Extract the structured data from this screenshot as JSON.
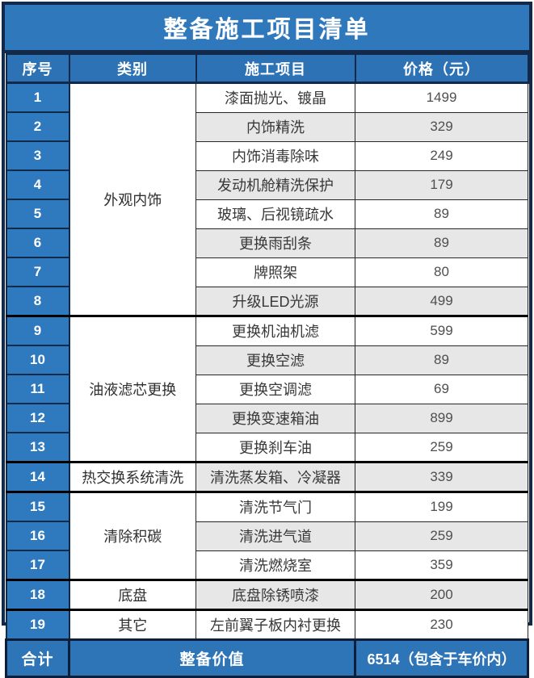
{
  "title": "整备施工项目清单",
  "columns": [
    "序号",
    "类别",
    "施工项目",
    "价格（元）"
  ],
  "rows": [
    {
      "no": "1",
      "category": {
        "label": "外观内饰",
        "span": 8
      },
      "project": "漆面抛光、镀晶",
      "price": "1499"
    },
    {
      "no": "2",
      "project": "内饰精洗",
      "price": "329"
    },
    {
      "no": "3",
      "project": "内饰消毒除味",
      "price": "249"
    },
    {
      "no": "4",
      "project": "发动机舱精洗保护",
      "price": "179"
    },
    {
      "no": "5",
      "project": "玻璃、后视镜疏水",
      "price": "89"
    },
    {
      "no": "6",
      "project": "更换雨刮条",
      "price": "89"
    },
    {
      "no": "7",
      "project": "牌照架",
      "price": "80"
    },
    {
      "no": "8",
      "project": "升级LED光源",
      "price": "499"
    },
    {
      "no": "9",
      "category": {
        "label": "油液滤芯更换",
        "span": 5
      },
      "project": "更换机油机滤",
      "price": "599"
    },
    {
      "no": "10",
      "project": "更换空滤",
      "price": "89"
    },
    {
      "no": "11",
      "project": "更换空调滤",
      "price": "69"
    },
    {
      "no": "12",
      "project": "更换变速箱油",
      "price": "899"
    },
    {
      "no": "13",
      "project": "更换刹车油",
      "price": "259"
    },
    {
      "no": "14",
      "category": {
        "label": "热交换系统清洗",
        "span": 1
      },
      "project": "清洗蒸发箱、冷凝器",
      "price": "339"
    },
    {
      "no": "15",
      "category": {
        "label": "清除积碳",
        "span": 3
      },
      "project": "清洗节气门",
      "price": "199"
    },
    {
      "no": "16",
      "project": "清洗进气道",
      "price": "259"
    },
    {
      "no": "17",
      "project": "清洗燃烧室",
      "price": "359"
    },
    {
      "no": "18",
      "category": {
        "label": "底盘",
        "span": 1
      },
      "project": "底盘除锈喷漆",
      "price": "200"
    },
    {
      "no": "19",
      "category": {
        "label": "其它",
        "span": 1
      },
      "project": "左前翼子板内衬更换",
      "price": "230"
    }
  ],
  "footer": {
    "label": "合计",
    "item": "整备价值",
    "price": "6514（包含于车价内）"
  },
  "colors": {
    "banner_blue": "#2f78bc",
    "header_blue": "#2d72b4",
    "number_cell_blue": "#2f7abf",
    "footer_blue": "#2e75b8",
    "frame_navy": "#13294a",
    "shade_gray": "#e7e7e7",
    "body_text": "#383838"
  }
}
